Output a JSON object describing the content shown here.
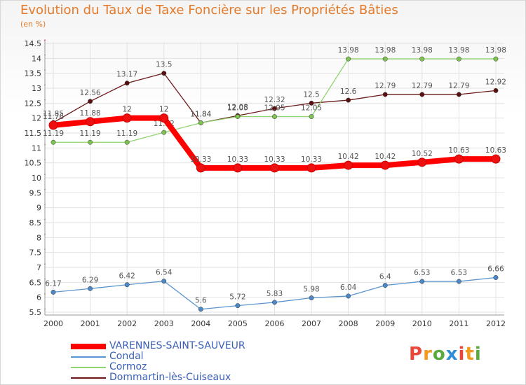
{
  "header": {
    "title": "Evolution du Taux de Taxe Foncière sur les Propriétés Bâties",
    "subtitle": "(en %)"
  },
  "logo": {
    "text": "Proxiti",
    "colors": [
      "#e8473a",
      "#f29b1d",
      "#5aaa3c",
      "#2f8fd6",
      "#e8473a",
      "#f29b1d",
      "#5aaa3c"
    ]
  },
  "chart_data": {
    "type": "line",
    "title": "Evolution du Taux de Taxe Foncière sur les Propriétés Bâties",
    "ylabel": "(en %)",
    "xlabel": "",
    "x": [
      "2000",
      "2001",
      "2002",
      "2003",
      "2004",
      "2005",
      "2006",
      "2007",
      "2008",
      "2009",
      "2010",
      "2011",
      "2012"
    ],
    "ylim": [
      5.5,
      14.5
    ],
    "yticks": [
      "5.5",
      "6",
      "6.5",
      "7",
      "7.5",
      "8",
      "8.5",
      "9",
      "9.5",
      "10",
      "10.5",
      "11",
      "11.5",
      "12",
      "12.5",
      "13",
      "13.5",
      "14",
      "14.5"
    ],
    "grid": true,
    "legend_position": "bottom-left",
    "series": [
      {
        "name": "Dommartin-lès-Cuiseaux",
        "color": "#6b1a1a",
        "marker": "#5a1010",
        "values": [
          11.85,
          12.56,
          13.17,
          13.5,
          11.84,
          12.08,
          12.32,
          12.5,
          12.6,
          12.79,
          12.79,
          12.79,
          12.92
        ],
        "labels": [
          "11.85",
          "12.56",
          "13.17",
          "13.5",
          "11.84",
          "12.08",
          "12.32",
          "12.5",
          "12.6",
          "12.79",
          "12.79",
          "12.79",
          "12.92"
        ]
      },
      {
        "name": "Cormoz",
        "color": "#8fd46e",
        "marker": "#7cc44f",
        "values": [
          11.19,
          11.19,
          11.19,
          11.52,
          11.84,
          12.05,
          12.05,
          12.05,
          13.98,
          13.98,
          13.98,
          13.98,
          13.98
        ],
        "labels": [
          "11.19",
          "11.19",
          "11.19",
          "11.52",
          "11.84",
          "12.05",
          "12.05",
          "12.05",
          "13.98",
          "13.98",
          "13.98",
          "13.98",
          "13.98"
        ]
      },
      {
        "name": "Condal",
        "color": "#5b95cf",
        "marker": "#4a88c8",
        "values": [
          6.17,
          6.29,
          6.42,
          6.54,
          5.6,
          5.72,
          5.83,
          5.98,
          6.04,
          6.4,
          6.53,
          6.53,
          6.66
        ],
        "labels": [
          "6.17",
          "6.29",
          "6.42",
          "6.54",
          "5.6",
          "5.72",
          "5.83",
          "5.98",
          "6.04",
          "6.4",
          "6.53",
          "6.53",
          "6.66"
        ]
      },
      {
        "name": "VARENNES-SAINT-SAUVEUR",
        "color": "#ff0000",
        "marker": "#ee1010",
        "values": [
          11.76,
          11.88,
          12,
          12,
          10.33,
          10.33,
          10.33,
          10.33,
          10.42,
          10.42,
          10.52,
          10.63,
          10.63
        ],
        "labels": [
          "11.76",
          "11.88",
          "12",
          "12",
          "10.33",
          "10.33",
          "10.33",
          "10.33",
          "10.42",
          "10.42",
          "10.52",
          "10.63",
          "10.63"
        ]
      }
    ]
  },
  "legend": {
    "items": [
      {
        "label": "VARENNES-SAINT-SAUVEUR",
        "color": "#ff0000",
        "weight": 8
      },
      {
        "label": "Condal",
        "color": "#5b95cf",
        "weight": 2
      },
      {
        "label": "Cormoz",
        "color": "#8fd46e",
        "weight": 2
      },
      {
        "label": "Dommartin-lès-Cuiseaux",
        "color": "#6b1a1a",
        "weight": 2
      }
    ]
  }
}
